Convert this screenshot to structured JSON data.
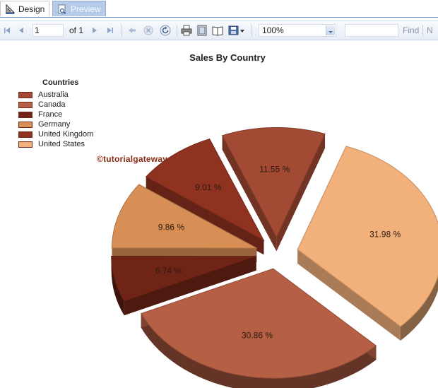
{
  "tabs": [
    {
      "label": "Design",
      "icon": "ruler-triangle-icon"
    },
    {
      "label": "Preview",
      "icon": "preview-document-icon"
    }
  ],
  "toolbar": {
    "page_number": "1",
    "of_label": "of",
    "total_pages": "1",
    "zoom": "100%",
    "find_label": "Find",
    "next_label": "N",
    "icons": [
      "first-page-icon",
      "previous-page-icon",
      "next-page-icon",
      "last-page-icon",
      "back-icon",
      "stop-icon",
      "refresh-icon",
      "print-icon",
      "print-layout-icon",
      "page-setup-icon",
      "export-icon"
    ]
  },
  "report": {
    "watermark": "©tutorialgateway.org"
  },
  "chart_data": {
    "type": "pie",
    "title": "Sales By Country",
    "legend_title": "Countries",
    "legend_position": "top-left",
    "exploded": true,
    "three_d": true,
    "categories": [
      "Australia",
      "Canada",
      "France",
      "Germany",
      "United Kingdom",
      "United States"
    ],
    "values": [
      11.55,
      30.86,
      6.74,
      9.86,
      9.01,
      31.98
    ],
    "labels": [
      "11.55 %",
      "30.86 %",
      "6.74 %",
      "9.86 %",
      "9.01 %",
      "31.98 %"
    ],
    "colors": [
      "#a24a33",
      "#b55f45",
      "#6f2416",
      "#d78f55",
      "#8f3220",
      "#f2b07b"
    ]
  }
}
